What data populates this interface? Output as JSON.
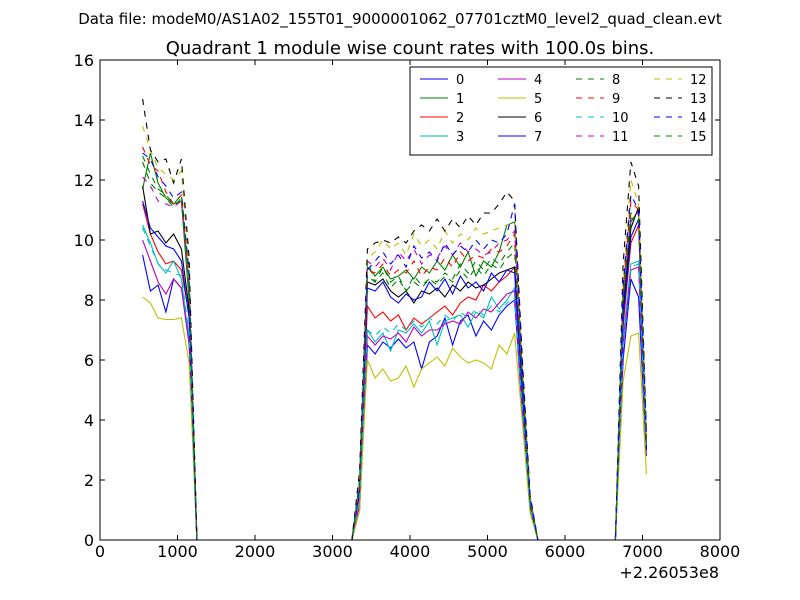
{
  "suptitle": "Data file: modeM0/AS1A02_155T01_9000001062_07701cztM0_level2_quad_clean.evt",
  "chart_data": {
    "type": "line",
    "title": "Quadrant 1 module wise count rates with 100.0s bins.",
    "xlabel": "",
    "ylabel": "",
    "x_offset_label": "+2.26053e8",
    "xlim": [
      0,
      8000
    ],
    "ylim": [
      0,
      16
    ],
    "x_ticks": [
      0,
      1000,
      2000,
      3000,
      4000,
      5000,
      6000,
      7000,
      8000
    ],
    "y_ticks": [
      0,
      2,
      4,
      6,
      8,
      10,
      12,
      14,
      16
    ],
    "grid": false,
    "legend_placement": "top-right",
    "legend_columns": 4,
    "x": [
      550,
      650,
      750,
      850,
      950,
      1050,
      1150,
      1250,
      1350,
      3250,
      3350,
      3450,
      3550,
      3650,
      3750,
      3850,
      3950,
      4050,
      4150,
      4250,
      4350,
      4450,
      4550,
      4650,
      4750,
      4850,
      4950,
      5050,
      5150,
      5250,
      5350,
      5450,
      5550,
      5650,
      5750,
      6650,
      6750,
      6850,
      6950,
      7050
    ],
    "series": [
      {
        "name": "0",
        "color": "#0000ff",
        "dash": "solid",
        "values": [
          9.5,
          8.3,
          8.5,
          7.6,
          8.7,
          8.4,
          6.8,
          0,
          0,
          0,
          1.0,
          6.5,
          6.2,
          6.6,
          6.4,
          6.7,
          6.4,
          6.6,
          5.7,
          6.6,
          6.8,
          7.4,
          6.5,
          7.3,
          7.5,
          6.8,
          7.3,
          7.0,
          7.5,
          7.8,
          8.0,
          4.2,
          1.0,
          0,
          0,
          0,
          6.0,
          8.7,
          8.1,
          2.8
        ]
      },
      {
        "name": "1",
        "color": "#008000",
        "dash": "solid",
        "values": [
          11.7,
          12.9,
          11.9,
          11.4,
          11.2,
          11.3,
          8.0,
          0,
          0,
          0,
          1.9,
          9.1,
          8.8,
          9.1,
          8.7,
          8.8,
          9.0,
          8.7,
          9.1,
          8.9,
          9.3,
          9.0,
          9.5,
          9.1,
          9.6,
          8.8,
          9.3,
          9.1,
          9.6,
          10.5,
          10.6,
          5.5,
          1.4,
          0,
          0,
          0,
          7.9,
          10.6,
          11.0,
          3.2
        ]
      },
      {
        "name": "2",
        "color": "#ff0000",
        "dash": "solid",
        "values": [
          11.2,
          10.2,
          9.6,
          9.2,
          9.3,
          9.0,
          7.5,
          0,
          0,
          0,
          1.5,
          7.8,
          7.4,
          7.6,
          7.3,
          7.5,
          7.0,
          7.4,
          7.2,
          7.4,
          7.6,
          7.8,
          7.5,
          7.9,
          8.1,
          8.0,
          8.5,
          8.3,
          8.6,
          8.8,
          9.1,
          4.8,
          1.2,
          0,
          0,
          0,
          7.1,
          9.9,
          10.5,
          3.0
        ]
      },
      {
        "name": "3",
        "color": "#00bfbf",
        "dash": "solid",
        "values": [
          10.5,
          9.9,
          9.2,
          8.9,
          9.3,
          8.7,
          6.6,
          0,
          0,
          0,
          1.3,
          7.0,
          6.6,
          6.9,
          6.3,
          7.0,
          6.9,
          7.2,
          6.9,
          7.3,
          6.5,
          7.3,
          7.4,
          7.5,
          7.1,
          7.6,
          7.4,
          8.1,
          7.7,
          8.0,
          8.4,
          4.4,
          1.1,
          0,
          0,
          0,
          6.7,
          9.2,
          9.3,
          2.9
        ]
      },
      {
        "name": "4",
        "color": "#bf00bf",
        "dash": "solid",
        "values": [
          10.0,
          9.3,
          8.6,
          8.2,
          8.7,
          8.4,
          6.5,
          0,
          0,
          0,
          1.2,
          6.8,
          6.5,
          6.8,
          6.7,
          6.9,
          6.6,
          7.1,
          6.8,
          7.0,
          7.0,
          7.2,
          7.3,
          7.2,
          7.6,
          7.4,
          7.7,
          7.6,
          7.9,
          8.2,
          8.3,
          4.3,
          1.0,
          0,
          0,
          0,
          6.5,
          9.0,
          9.1,
          2.8
        ]
      },
      {
        "name": "5",
        "color": "#bfbf00",
        "dash": "solid",
        "values": [
          8.1,
          7.9,
          7.4,
          7.35,
          7.35,
          7.4,
          5.9,
          0,
          0,
          0,
          1.0,
          6.0,
          5.4,
          5.7,
          5.3,
          5.4,
          5.8,
          5.1,
          5.7,
          5.9,
          6.1,
          5.8,
          6.4,
          6.1,
          5.9,
          6.0,
          5.9,
          5.7,
          6.5,
          6.2,
          6.9,
          3.9,
          0.9,
          0,
          0,
          0,
          5.3,
          6.8,
          6.9,
          2.2
        ]
      },
      {
        "name": "6",
        "color": "#000000",
        "dash": "solid",
        "values": [
          11.8,
          10.2,
          10.3,
          9.9,
          10.2,
          9.7,
          7.7,
          0,
          0,
          0,
          1.7,
          8.6,
          8.5,
          8.7,
          8.3,
          8.1,
          8.3,
          7.9,
          8.3,
          8.2,
          8.4,
          8.1,
          8.5,
          8.3,
          8.6,
          8.4,
          8.5,
          8.7,
          8.9,
          9.0,
          9.1,
          5.0,
          1.2,
          0,
          0,
          0,
          7.6,
          10.4,
          11.1,
          3.1
        ]
      },
      {
        "name": "7",
        "color": "#0000ff",
        "dash": "solid",
        "values": [
          11.3,
          10.4,
          10.1,
          9.8,
          9.7,
          9.3,
          7.4,
          0,
          0,
          0,
          1.6,
          8.4,
          8.3,
          8.6,
          8.1,
          7.9,
          8.2,
          8.0,
          8.1,
          8.6,
          8.3,
          8.7,
          8.2,
          8.8,
          8.4,
          8.6,
          8.3,
          8.9,
          8.6,
          9.0,
          8.9,
          4.9,
          1.2,
          0,
          0,
          0,
          7.4,
          10.1,
          10.7,
          3.0
        ]
      },
      {
        "name": "8",
        "color": "#008000",
        "dash": "dashed",
        "values": [
          12.6,
          11.9,
          11.6,
          11.4,
          11.1,
          11.4,
          8.7,
          0,
          0,
          0,
          2.0,
          9.3,
          8.6,
          9.1,
          8.6,
          8.8,
          8.3,
          8.8,
          8.5,
          8.7,
          8.6,
          8.9,
          8.7,
          9.2,
          8.9,
          9.3,
          9.0,
          9.4,
          9.2,
          9.6,
          9.9,
          5.4,
          1.3,
          0,
          0,
          0,
          8.1,
          10.9,
          10.9,
          3.3
        ]
      },
      {
        "name": "9",
        "color": "#ff0000",
        "dash": "dashed",
        "values": [
          13.1,
          12.5,
          12.3,
          11.6,
          11.2,
          11.5,
          8.8,
          0,
          0,
          0,
          1.9,
          9.0,
          8.9,
          9.2,
          8.8,
          9.0,
          8.9,
          9.3,
          8.8,
          9.1,
          9.0,
          9.4,
          9.1,
          9.6,
          9.3,
          9.5,
          9.4,
          9.7,
          9.6,
          9.8,
          10.2,
          5.6,
          1.4,
          0,
          0,
          0,
          8.3,
          11.3,
          11.0,
          3.4
        ]
      },
      {
        "name": "10",
        "color": "#00bfbf",
        "dash": "dashed",
        "values": [
          10.4,
          9.8,
          9.2,
          9.0,
          8.9,
          8.8,
          6.9,
          0,
          0,
          0,
          1.4,
          7.0,
          6.8,
          7.1,
          6.9,
          7.2,
          7.0,
          7.3,
          7.1,
          7.4,
          7.2,
          7.5,
          7.3,
          7.6,
          7.4,
          7.7,
          7.5,
          7.8,
          7.6,
          7.9,
          8.1,
          4.4,
          1.1,
          0,
          0,
          0,
          6.6,
          9.1,
          9.2,
          2.9
        ]
      },
      {
        "name": "11",
        "color": "#bf00bf",
        "dash": "dashed",
        "values": [
          12.1,
          11.8,
          11.3,
          11.2,
          11.1,
          11.3,
          8.4,
          0,
          0,
          0,
          1.8,
          9.3,
          9.1,
          9.4,
          9.0,
          9.6,
          9.3,
          9.7,
          9.2,
          9.5,
          9.4,
          9.8,
          9.5,
          9.9,
          9.6,
          9.7,
          9.5,
          9.6,
          9.9,
          10.0,
          10.3,
          5.5,
          1.3,
          0,
          0,
          0,
          8.0,
          10.8,
          10.9,
          3.3
        ]
      },
      {
        "name": "12",
        "color": "#bfbf00",
        "dash": "dashed",
        "values": [
          13.8,
          13.0,
          12.4,
          12.2,
          12.0,
          12.3,
          9.1,
          0,
          0,
          0,
          2.1,
          9.4,
          9.6,
          10.0,
          9.7,
          9.9,
          9.5,
          10.2,
          9.8,
          10.0,
          9.7,
          10.3,
          9.9,
          10.2,
          10.0,
          10.4,
          10.2,
          10.3,
          10.4,
          10.5,
          10.6,
          5.8,
          1.4,
          0,
          0,
          0,
          8.6,
          12.0,
          11.2,
          3.5
        ]
      },
      {
        "name": "13",
        "color": "#000000",
        "dash": "dashed",
        "values": [
          14.7,
          13.0,
          12.6,
          12.7,
          11.9,
          12.7,
          9.4,
          0,
          0,
          0,
          2.3,
          9.7,
          9.9,
          10.0,
          9.9,
          10.1,
          9.9,
          10.3,
          10.5,
          10.3,
          10.7,
          10.3,
          10.7,
          10.4,
          10.8,
          10.5,
          10.9,
          10.9,
          11.2,
          11.6,
          11.3,
          6.0,
          1.5,
          0,
          0,
          0,
          9.2,
          12.6,
          11.8,
          3.6
        ]
      },
      {
        "name": "14",
        "color": "#0000ff",
        "dash": "dashed",
        "values": [
          12.9,
          12.7,
          12.1,
          11.8,
          11.4,
          11.6,
          8.9,
          0,
          0,
          0,
          2.0,
          9.0,
          9.3,
          9.6,
          9.2,
          9.5,
          9.1,
          9.8,
          9.4,
          9.6,
          9.3,
          9.9,
          9.5,
          9.8,
          9.6,
          10.0,
          9.7,
          10.0,
          9.9,
          10.2,
          11.2,
          5.7,
          1.4,
          0,
          0,
          0,
          8.4,
          11.5,
          11.0,
          3.4
        ]
      },
      {
        "name": "15",
        "color": "#008000",
        "dash": "dashed",
        "values": [
          12.8,
          12.2,
          11.7,
          11.5,
          11.2,
          11.5,
          8.6,
          0,
          0,
          0,
          1.9,
          8.8,
          8.6,
          8.9,
          8.4,
          8.7,
          8.3,
          8.6,
          8.4,
          8.7,
          8.5,
          8.8,
          8.6,
          9.0,
          8.7,
          9.1,
          8.8,
          9.2,
          9.0,
          9.4,
          9.6,
          5.3,
          1.3,
          0,
          0,
          0,
          8.0,
          10.7,
          10.8,
          3.2
        ]
      }
    ]
  }
}
